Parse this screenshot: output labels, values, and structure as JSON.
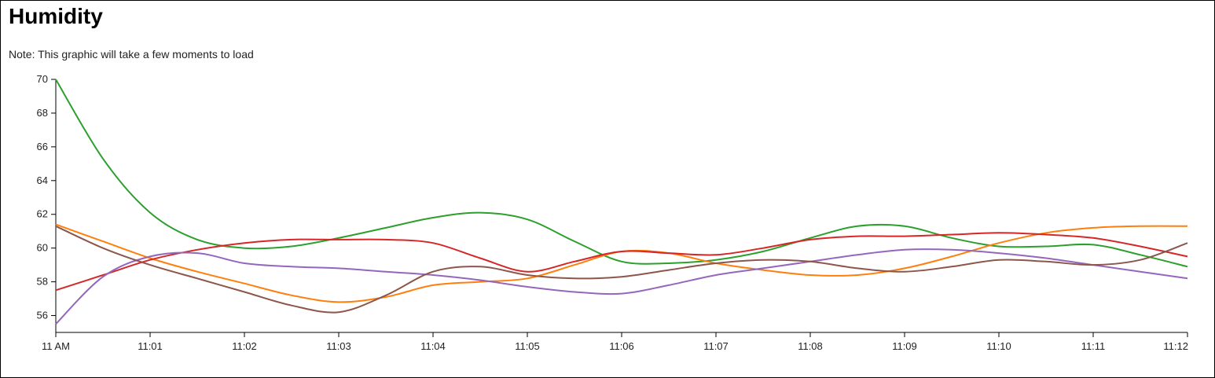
{
  "page": {
    "title": "Humidity",
    "note": "Note: This graphic will take a few moments to load"
  },
  "chart_data": {
    "type": "line",
    "title": "Humidity",
    "xlabel": "",
    "ylabel": "",
    "x_ticks": [
      "11 AM",
      "11:01",
      "11:02",
      "11:03",
      "11:04",
      "11:05",
      "11:06",
      "11:07",
      "11:08",
      "11:09",
      "11:10",
      "11:11",
      "11:12"
    ],
    "y_ticks": [
      56,
      58,
      60,
      62,
      64,
      66,
      68,
      70
    ],
    "ylim": [
      55,
      70
    ],
    "grid": false,
    "series": [
      {
        "color": "#2ca02c",
        "points": [
          [
            0,
            70
          ],
          [
            0.5,
            65.3
          ],
          [
            1,
            62.1
          ],
          [
            1.5,
            60.5
          ],
          [
            2,
            60
          ],
          [
            2.5,
            60.1
          ],
          [
            3,
            60.6
          ],
          [
            3.5,
            61.2
          ],
          [
            4,
            61.8
          ],
          [
            4.5,
            62.1
          ],
          [
            5,
            61.7
          ],
          [
            5.5,
            60.4
          ],
          [
            6,
            59.2
          ],
          [
            6.5,
            59.1
          ],
          [
            7,
            59.3
          ],
          [
            7.5,
            59.8
          ],
          [
            8,
            60.6
          ],
          [
            8.5,
            61.3
          ],
          [
            9,
            61.3
          ],
          [
            9.5,
            60.6
          ],
          [
            10,
            60.1
          ],
          [
            10.5,
            60.1
          ],
          [
            11,
            60.2
          ],
          [
            11.5,
            59.6
          ],
          [
            12,
            58.9
          ]
        ]
      },
      {
        "color": "#ff7f0e",
        "points": [
          [
            0,
            61.4
          ],
          [
            0.5,
            60.4
          ],
          [
            1,
            59.4
          ],
          [
            1.5,
            58.6
          ],
          [
            2,
            57.9
          ],
          [
            2.5,
            57.2
          ],
          [
            3,
            56.8
          ],
          [
            3.5,
            57.1
          ],
          [
            4,
            57.8
          ],
          [
            4.5,
            58
          ],
          [
            5,
            58.2
          ],
          [
            5.5,
            59
          ],
          [
            6,
            59.8
          ],
          [
            6.5,
            59.7
          ],
          [
            7,
            59.1
          ],
          [
            7.5,
            58.7
          ],
          [
            8,
            58.4
          ],
          [
            8.5,
            58.4
          ],
          [
            9,
            58.8
          ],
          [
            9.5,
            59.5
          ],
          [
            10,
            60.3
          ],
          [
            10.5,
            60.9
          ],
          [
            11,
            61.2
          ],
          [
            11.5,
            61.3
          ],
          [
            12,
            61.3
          ]
        ]
      },
      {
        "color": "#d62728",
        "points": [
          [
            0,
            57.5
          ],
          [
            0.5,
            58.4
          ],
          [
            1,
            59.3
          ],
          [
            1.5,
            59.9
          ],
          [
            2,
            60.3
          ],
          [
            2.5,
            60.5
          ],
          [
            3,
            60.5
          ],
          [
            3.5,
            60.5
          ],
          [
            4,
            60.3
          ],
          [
            4.5,
            59.4
          ],
          [
            5,
            58.6
          ],
          [
            5.5,
            59.2
          ],
          [
            6,
            59.8
          ],
          [
            6.5,
            59.7
          ],
          [
            7,
            59.6
          ],
          [
            7.5,
            60
          ],
          [
            8,
            60.5
          ],
          [
            8.5,
            60.7
          ],
          [
            9,
            60.7
          ],
          [
            9.5,
            60.8
          ],
          [
            10,
            60.9
          ],
          [
            10.5,
            60.8
          ],
          [
            11,
            60.6
          ],
          [
            11.5,
            60.1
          ],
          [
            12,
            59.5
          ]
        ]
      },
      {
        "color": "#9467bd",
        "points": [
          [
            0,
            55.5
          ],
          [
            0.5,
            58.3
          ],
          [
            1,
            59.5
          ],
          [
            1.5,
            59.7
          ],
          [
            2,
            59.1
          ],
          [
            2.5,
            58.9
          ],
          [
            3,
            58.8
          ],
          [
            3.5,
            58.6
          ],
          [
            4,
            58.4
          ],
          [
            4.5,
            58.1
          ],
          [
            5,
            57.7
          ],
          [
            5.5,
            57.4
          ],
          [
            6,
            57.3
          ],
          [
            6.5,
            57.8
          ],
          [
            7,
            58.4
          ],
          [
            7.5,
            58.8
          ],
          [
            8,
            59.2
          ],
          [
            8.5,
            59.6
          ],
          [
            9,
            59.9
          ],
          [
            9.5,
            59.9
          ],
          [
            10,
            59.7
          ],
          [
            10.5,
            59.4
          ],
          [
            11,
            59
          ],
          [
            11.5,
            58.6
          ],
          [
            12,
            58.2
          ]
        ]
      },
      {
        "color": "#8c564b",
        "points": [
          [
            0,
            61.3
          ],
          [
            0.5,
            60
          ],
          [
            1,
            59
          ],
          [
            1.5,
            58.2
          ],
          [
            2,
            57.4
          ],
          [
            2.5,
            56.6
          ],
          [
            3,
            56.2
          ],
          [
            3.5,
            57.2
          ],
          [
            4,
            58.6
          ],
          [
            4.5,
            58.9
          ],
          [
            5,
            58.4
          ],
          [
            5.5,
            58.2
          ],
          [
            6,
            58.3
          ],
          [
            6.5,
            58.7
          ],
          [
            7,
            59.1
          ],
          [
            7.5,
            59.3
          ],
          [
            8,
            59.2
          ],
          [
            8.5,
            58.8
          ],
          [
            9,
            58.6
          ],
          [
            9.5,
            58.9
          ],
          [
            10,
            59.3
          ],
          [
            10.5,
            59.2
          ],
          [
            11,
            59
          ],
          [
            11.5,
            59.3
          ],
          [
            12,
            60.3
          ]
        ]
      }
    ]
  }
}
